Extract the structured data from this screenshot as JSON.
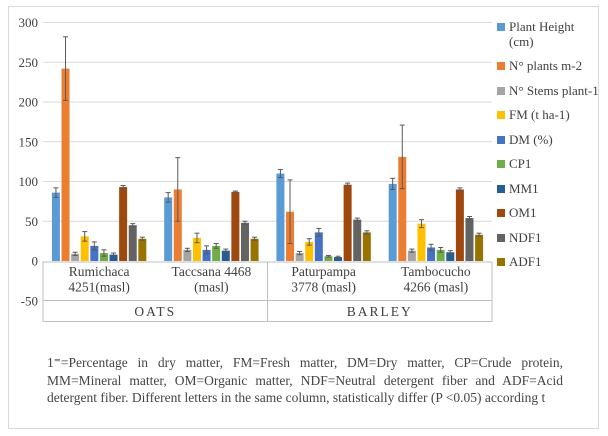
{
  "figure": {
    "border_color": "#D9D9D9",
    "background": "#FFFFFF"
  },
  "chart_data": {
    "type": "bar",
    "grid": true,
    "legend_position": "right",
    "gridline_color": "#D9D9D9",
    "axis_box_color": "#BFBFBF",
    "error_bar_color": "#595959",
    "text_color": "#404040",
    "y_axis": {
      "min": -50,
      "max": 300,
      "step": 50,
      "tick_labels": [
        "300",
        "250",
        "200",
        "150",
        "100",
        "50",
        "0",
        "-50"
      ]
    },
    "categories": [
      {
        "lines": [
          "Rumichaca",
          "4251(masl)"
        ],
        "group": "OATS"
      },
      {
        "lines": [
          "Taccsana 4468",
          "(masl)"
        ],
        "group": "OATS"
      },
      {
        "lines": [
          "Paturpampa",
          "3778 (masl)"
        ],
        "group": "BARLEY"
      },
      {
        "lines": [
          "Tambocucho",
          "4266 (masl)"
        ],
        "group": "BARLEY"
      }
    ],
    "groups": [
      "OATS",
      "BARLEY"
    ],
    "series": [
      {
        "name": "Plant Height (cm)",
        "color": "#5B9BD5",
        "values": [
          86,
          80,
          110,
          97
        ],
        "errors": [
          6,
          6,
          5,
          7
        ]
      },
      {
        "name": "N° plants m-2",
        "color": "#ED7D31",
        "values": [
          242,
          90,
          62,
          131
        ],
        "errors": [
          40,
          40,
          40,
          40
        ]
      },
      {
        "name": "N° Stems plant-1",
        "color": "#A5A5A5",
        "values": [
          9,
          14,
          10,
          13
        ],
        "errors": [
          2,
          2,
          2,
          2
        ]
      },
      {
        "name": "FM (t ha-1)",
        "color": "#FFC000",
        "values": [
          31,
          29,
          24,
          47
        ],
        "errors": [
          6,
          6,
          4,
          5
        ]
      },
      {
        "name": "DM (%)",
        "color": "#4472C4",
        "values": [
          19,
          14,
          36,
          17
        ],
        "errors": [
          5,
          5,
          5,
          4
        ]
      },
      {
        "name": "CP1",
        "color": "#70AD47",
        "values": [
          10,
          19,
          6,
          14
        ],
        "errors": [
          4,
          3,
          1,
          3
        ]
      },
      {
        "name": "MM1",
        "color": "#255E91",
        "values": [
          8,
          13,
          5,
          11
        ],
        "errors": [
          2,
          2,
          1,
          2
        ]
      },
      {
        "name": "OM1",
        "color": "#9E480E",
        "values": [
          93,
          87,
          96,
          90
        ],
        "errors": [
          2,
          1,
          2,
          2
        ]
      },
      {
        "name": "NDF1",
        "color": "#636363",
        "values": [
          45,
          48,
          52,
          54
        ],
        "errors": [
          2,
          2,
          2,
          2
        ]
      },
      {
        "name": "ADF1",
        "color": "#997300",
        "values": [
          28,
          28,
          36,
          33
        ],
        "errors": [
          2,
          2,
          2,
          2
        ]
      }
    ]
  },
  "footnote": {
    "text": "1⁼=Percentage in dry matter, FM=Fresh matter, DM=Dry matter, CP=Crude protein, MM=Mineral matter, OM=Organic matter, NDF=Neutral detergent fiber and ADF=Acid detergent fiber. Different letters in the same column, statistically differ (P <0.05) according t"
  }
}
